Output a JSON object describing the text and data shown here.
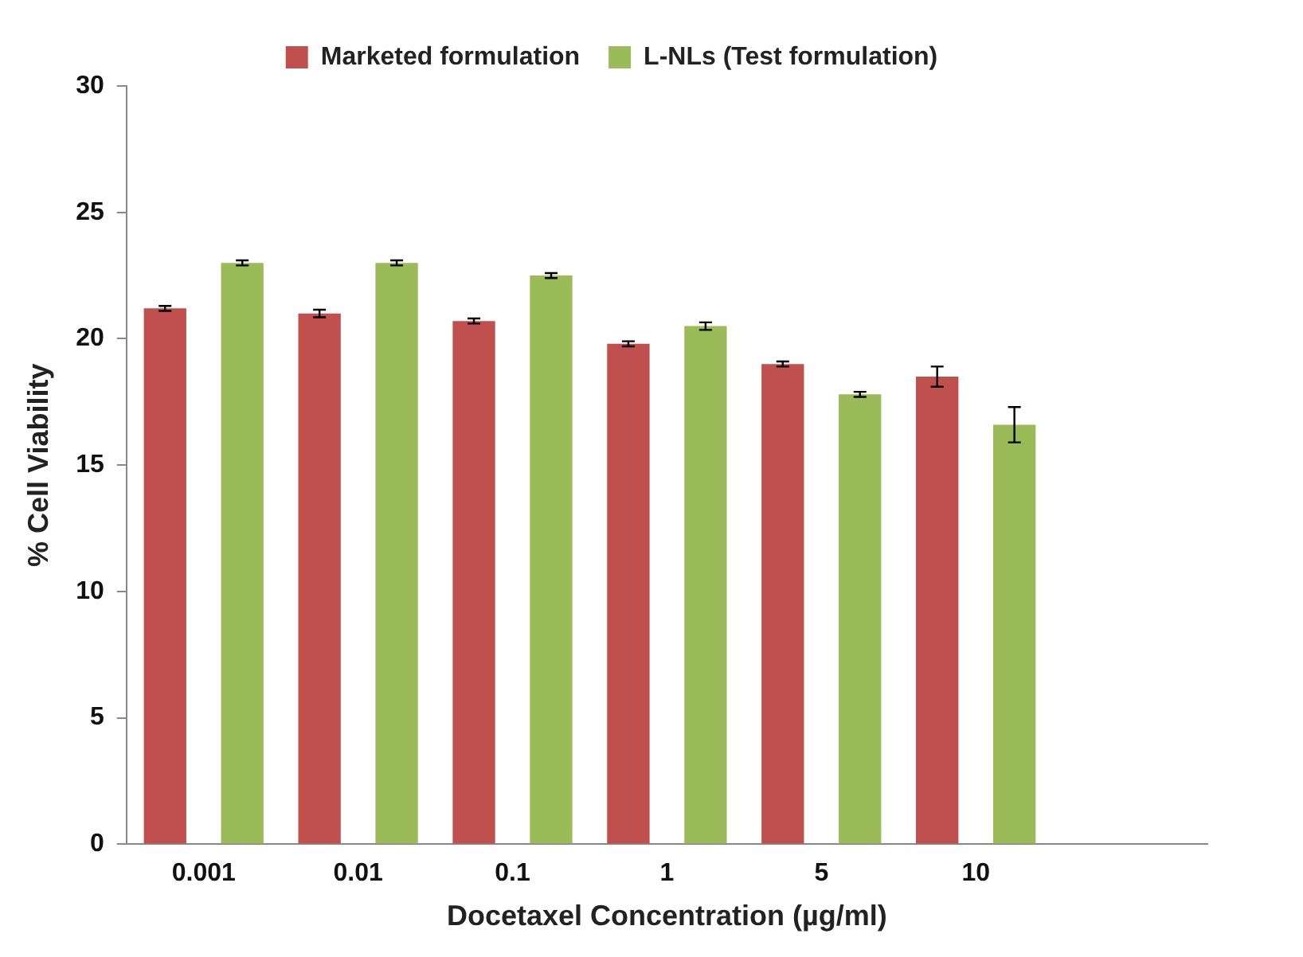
{
  "chart_data": {
    "type": "bar",
    "xlabel": "Docetaxel Concentration (µg/ml)",
    "ylabel": "% Cell Viability",
    "categories": [
      "0.001",
      "0.01",
      "0.1",
      "1",
      "5",
      "10",
      null
    ],
    "series": [
      {
        "name": "Marketed formulation",
        "color": "#c0504d",
        "values": [
          21.2,
          21.0,
          20.7,
          19.8,
          19.0,
          18.5,
          null
        ],
        "errors": [
          0.1,
          0.15,
          0.1,
          0.1,
          0.1,
          0.4,
          null
        ]
      },
      {
        "name": "L-NLs (Test formulation)",
        "color": "#9bbb59",
        "values": [
          23.0,
          23.0,
          22.5,
          20.5,
          17.8,
          16.6,
          null
        ],
        "errors": [
          0.1,
          0.1,
          0.1,
          0.15,
          0.1,
          0.7,
          null
        ]
      }
    ],
    "ylim": [
      0,
      30
    ],
    "yticks": [
      0,
      5,
      10,
      15,
      20,
      25,
      30
    ],
    "grid": false,
    "legend": "top"
  }
}
